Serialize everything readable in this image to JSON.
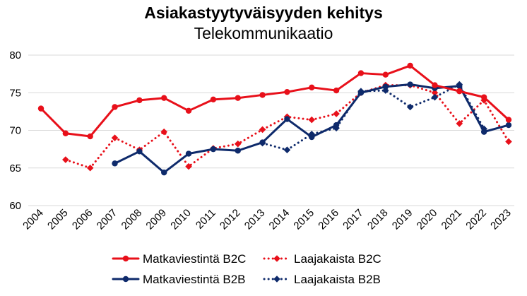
{
  "chart_data": {
    "type": "line",
    "title": "Asiakastyytyväisyyden kehitys",
    "subtitle": "Telekommunikaatio",
    "x": [
      "2004",
      "2005",
      "2006",
      "2007",
      "2008",
      "2009",
      "2010",
      "2011",
      "2012",
      "2013",
      "2014",
      "2015",
      "2016",
      "2017",
      "2018",
      "2019",
      "2020",
      "2021",
      "2022",
      "2023"
    ],
    "ylim": [
      60,
      80
    ],
    "yticks": [
      "60",
      "65",
      "70",
      "75",
      "80"
    ],
    "grid": true,
    "legend_position": "bottom",
    "series": [
      {
        "name": "Matkaviestintä B2C",
        "color": "#e8101a",
        "line": "solid",
        "marker": "circle",
        "values": [
          72.9,
          69.6,
          69.2,
          73.1,
          74.0,
          74.3,
          72.6,
          74.1,
          74.3,
          74.7,
          75.1,
          75.7,
          75.3,
          77.6,
          77.4,
          78.6,
          76.0,
          75.2,
          74.4,
          71.4
        ]
      },
      {
        "name": "Laajakaista B2C",
        "color": "#e8101a",
        "line": "dotted",
        "marker": "diamond",
        "values": [
          null,
          66.1,
          65.0,
          69.0,
          67.4,
          69.8,
          65.2,
          67.6,
          68.2,
          70.1,
          71.8,
          71.4,
          72.2,
          75.0,
          76.0,
          76.0,
          75.0,
          70.9,
          74.0,
          68.5
        ]
      },
      {
        "name": "Matkaviestintä B2B",
        "color": "#0e2a6b",
        "line": "solid",
        "marker": "circle",
        "values": [
          null,
          null,
          null,
          65.6,
          67.2,
          64.4,
          66.9,
          67.5,
          67.3,
          68.4,
          71.5,
          69.1,
          70.7,
          75.0,
          75.8,
          76.1,
          75.6,
          75.9,
          69.8,
          70.7
        ]
      },
      {
        "name": "Laajakaista B2B",
        "color": "#0e2a6b",
        "line": "dotted",
        "marker": "diamond",
        "values": [
          null,
          null,
          null,
          null,
          null,
          null,
          null,
          null,
          null,
          68.3,
          67.4,
          69.5,
          70.3,
          75.2,
          75.3,
          73.1,
          74.4,
          76.1,
          70.2,
          null
        ]
      }
    ]
  }
}
